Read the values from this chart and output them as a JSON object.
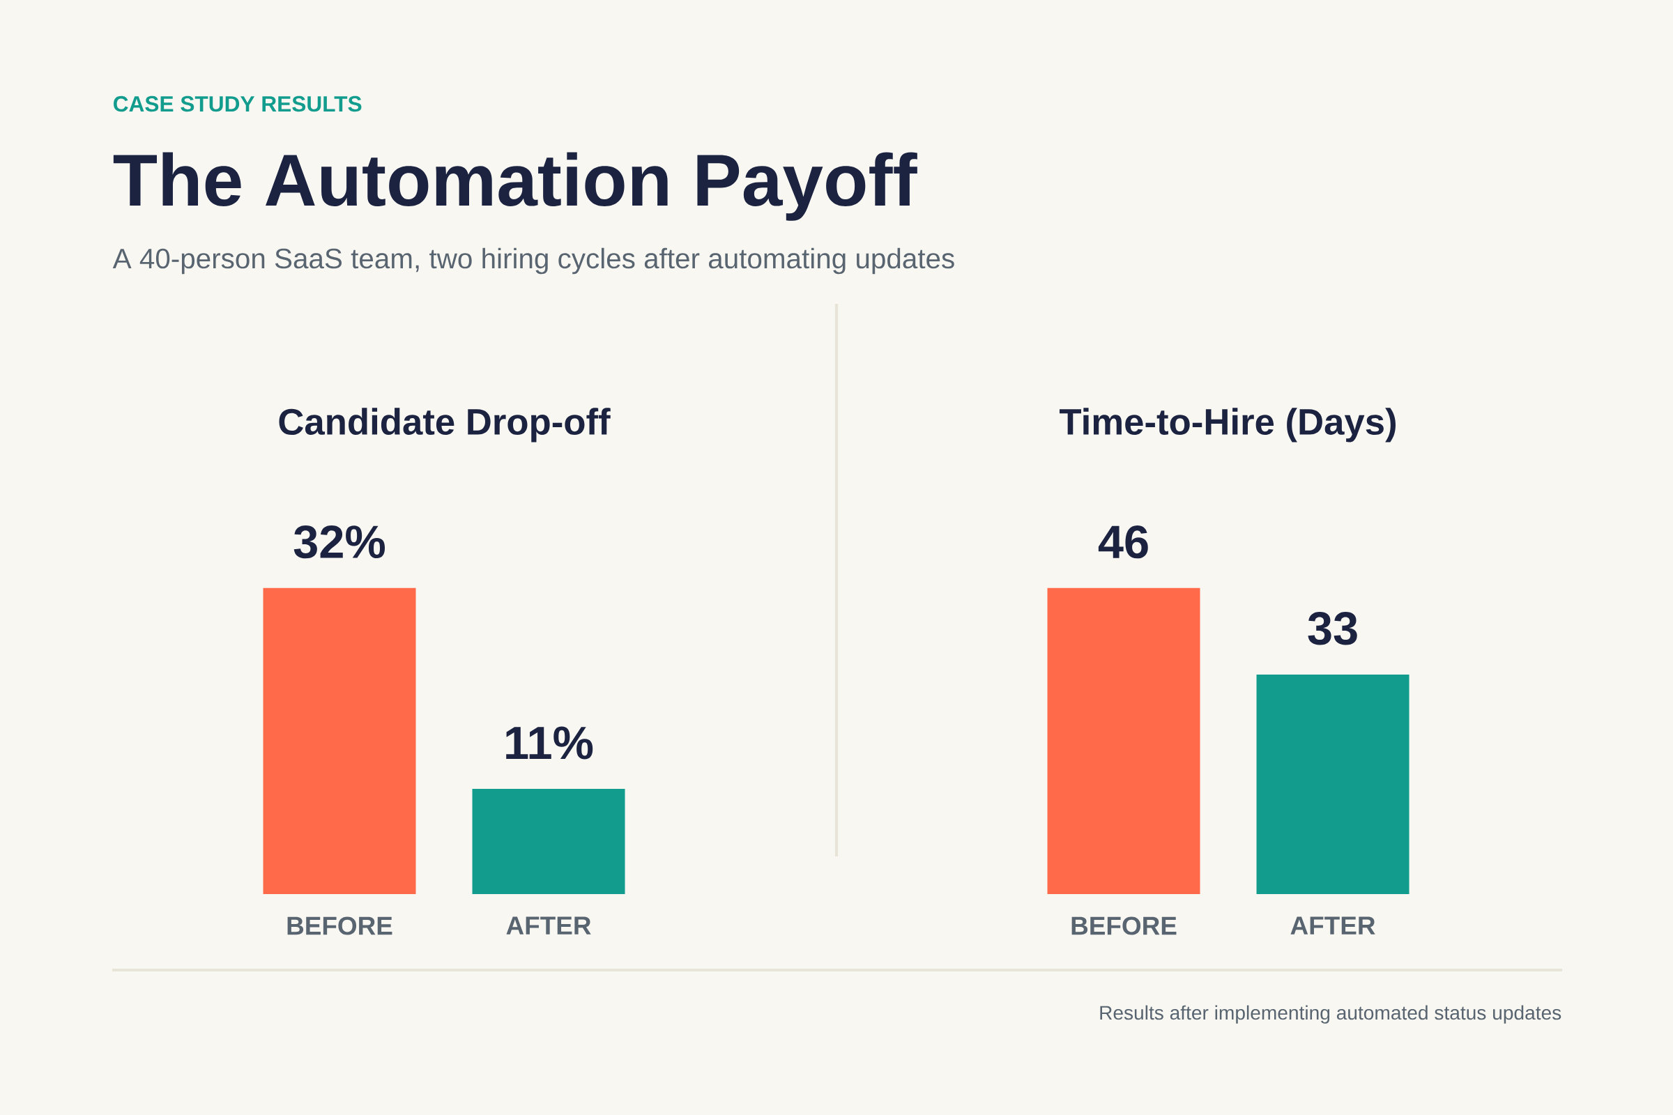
{
  "chart_data": [
    {
      "type": "other",
      "title": "The Automation Payoff",
      "subtitle": "A 40-person SaaS team, two hiring cycles after automating updates",
      "annotations": [
        "CASE STUDY RESULTS",
        "Results after implementing automated status updates"
      ]
    },
    {
      "type": "bar",
      "title": "Candidate Drop-off",
      "categories": [
        "BEFORE",
        "AFTER"
      ],
      "values": [
        32,
        11
      ],
      "colors": [
        "#ff6b4a",
        "#129c8e"
      ],
      "value_labels": [
        "32%",
        "11%"
      ]
    },
    {
      "type": "bar",
      "title": "Time-to-Hire (Days)",
      "categories": [
        "BEFORE",
        "AFTER"
      ],
      "values": [
        46,
        33
      ],
      "colors": [
        "#ff6b4a",
        "#129c8e"
      ],
      "data_labels": true
    }
  ]
}
